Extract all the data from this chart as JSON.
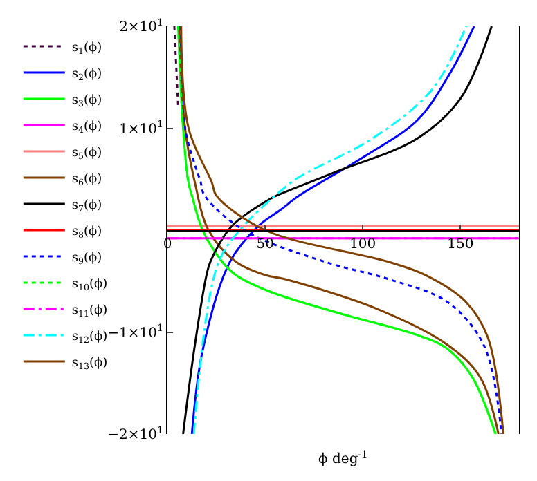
{
  "chart_data": {
    "type": "line",
    "xlabel": "ϕ deg$^{-1}$",
    "xlim": [
      0,
      180
    ],
    "ylim": [
      -20,
      20
    ],
    "xticks": [
      0,
      50,
      100,
      150
    ],
    "yticks": [
      {
        "value": 20,
        "label": "2×10$^{1}$"
      },
      {
        "value": 10,
        "label": "1×10$^{1}$"
      },
      {
        "value": -10,
        "label": "−1×10$^{1}$"
      },
      {
        "value": -20,
        "label": "−2×10$^{1}$"
      }
    ],
    "legend": "left",
    "marker": "none",
    "series": [
      {
        "name": "s$_{1}$(ϕ)",
        "color": "#400040",
        "line_style": "dotted",
        "x": [
          3.5,
          5.5
        ],
        "values": [
          20,
          12
        ]
      },
      {
        "name": "s$_{2}$(ϕ)",
        "color": "#0000ff",
        "line_style": "solid",
        "x": [
          12.5,
          18,
          32,
          46.5,
          58,
          67.5,
          101.5,
          128,
          145,
          157
        ],
        "values": [
          -20,
          -11.8,
          -3.1,
          0.4,
          2,
          3.4,
          7.3,
          10.8,
          15.5,
          20
        ]
      },
      {
        "name": "s$_{3}$(ϕ)",
        "color": "#00ff00",
        "line_style": "solid",
        "x": [
          5.5,
          8,
          10.7,
          12.5,
          18,
          28,
          35,
          52,
          87,
          128,
          143,
          156,
          168
        ],
        "values": [
          20,
          10,
          4.7,
          3.4,
          0,
          -3.1,
          -4.4,
          -6,
          -8.1,
          -10.3,
          -11.6,
          -14.4,
          -20
        ]
      },
      {
        "name": "s$_{4}$(ϕ)",
        "color": "#ff00ff",
        "line_style": "solid",
        "x": [
          0,
          180
        ],
        "values": [
          -0.8,
          -0.8
        ]
      },
      {
        "name": "s$_{5}$(ϕ)",
        "color": "#ff8080",
        "line_style": "solid",
        "x": [
          0,
          180
        ],
        "values": [
          0.4,
          0.4
        ]
      },
      {
        "name": "s$_{6}$(ϕ)",
        "color": "#804000",
        "line_style": "solid",
        "x": [
          6,
          9,
          14,
          21,
          35,
          50,
          60,
          107,
          143,
          160,
          169.5
        ],
        "values": [
          20,
          10,
          4.7,
          0,
          -3.1,
          -4.4,
          -4.8,
          -7.7,
          -11.2,
          -14.4,
          -20
        ]
      },
      {
        "name": "s$_{7}$(ϕ)",
        "color": "#000000",
        "line_style": "solid",
        "x": [
          8,
          14,
          20,
          22,
          33,
          52,
          56,
          86,
          128,
          150,
          166
        ],
        "values": [
          -20,
          -11.3,
          -4.4,
          -3.1,
          0.4,
          3,
          3.4,
          5.7,
          9,
          12.9,
          20
        ]
      },
      {
        "name": "s$_{8}$(ϕ)",
        "color": "#ff0000",
        "line_style": "solid",
        "x": [
          0,
          180
        ],
        "values": [
          0,
          0
        ]
      },
      {
        "name": "s$_{9}$(ϕ)",
        "color": "#0000ff",
        "line_style": "dotted",
        "x": [
          6.5,
          9,
          17,
          19,
          39,
          80.5,
          106,
          113,
          143,
          162,
          171
        ],
        "values": [
          20,
          10,
          4.7,
          3.4,
          0,
          -3.1,
          -4.4,
          -4.8,
          -7,
          -11.3,
          -20
        ]
      },
      {
        "name": "s$_{10}$(ϕ)",
        "color": "#00ff00",
        "line_style": "dotted",
        "x": [
          5.5,
          8,
          10.7,
          12.5,
          18,
          28,
          35,
          52,
          87,
          128,
          143,
          156,
          168
        ],
        "values": [
          20,
          10,
          4.7,
          3.4,
          0,
          -3.1,
          -4.4,
          -6,
          -8.1,
          -10.3,
          -11.6,
          -14.4,
          -20
        ]
      },
      {
        "name": "s$_{11}$(ϕ)",
        "color": "#ff00ff",
        "line_style": "dashed",
        "x": [
          0,
          180
        ],
        "values": [
          -0.8,
          -0.8
        ]
      },
      {
        "name": "s$_{12}$(ϕ)",
        "color": "#00ffff",
        "line_style": "dashed",
        "x": [
          13.5,
          25.5,
          37,
          63.5,
          71,
          105,
          135.5,
          153
        ],
        "values": [
          -20,
          -3.5,
          0,
          4.7,
          5.6,
          9,
          13.8,
          20
        ]
      },
      {
        "name": "s$_{13}$(ϕ)",
        "color": "#804000",
        "line_style": "solid",
        "x": [
          7,
          10.8,
          22.7,
          25,
          50,
          113,
          132,
          152.6,
          164,
          172
        ],
        "values": [
          20,
          10,
          4.7,
          3.4,
          0,
          -3.1,
          -4.4,
          -7,
          -10.5,
          -20
        ]
      }
    ]
  }
}
